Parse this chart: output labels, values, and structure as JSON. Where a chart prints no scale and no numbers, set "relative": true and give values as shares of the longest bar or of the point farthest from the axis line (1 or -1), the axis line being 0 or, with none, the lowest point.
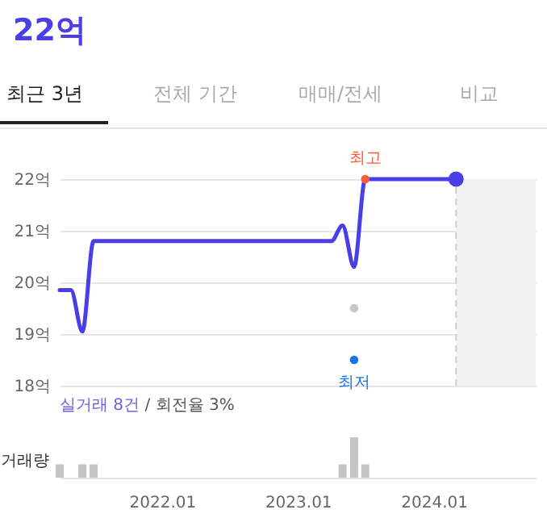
{
  "chart_data": [
    {
      "type": "line",
      "title": "22억",
      "x": [
        "2021-04",
        "2021-05",
        "2021-06",
        "2021-07",
        "2023-04",
        "2023-05",
        "2023-06",
        "2023-07",
        "2024-03"
      ],
      "series": [
        {
          "color": "#4a3ee6",
          "values": [
            19.85,
            19.85,
            19.05,
            20.8,
            20.8,
            21.1,
            20.3,
            22.0,
            22.0
          ]
        },
        {
          "type": "scatter",
          "color": "#c8c8c8",
          "x": [
            "2023-06"
          ],
          "values": [
            19.5
          ]
        },
        {
          "type": "scatter",
          "color": "#1a73e8",
          "x": [
            "2023-06"
          ],
          "values": [
            18.5
          ]
        },
        {
          "type": "scatter",
          "color": "#ff5a36",
          "x": [
            "2023-07"
          ],
          "values": [
            22.0
          ]
        },
        {
          "type": "scatter",
          "color": "#4a3ee6",
          "x": [
            "2024-03"
          ],
          "values": [
            22.0
          ]
        }
      ],
      "xlim": [
        "2021-04",
        "2024-10"
      ],
      "ylim": [
        18,
        22
      ],
      "yticks": [
        {
          "value": 18,
          "label": "18억"
        },
        {
          "value": 19,
          "label": "19억"
        },
        {
          "value": 20,
          "label": "20억"
        },
        {
          "value": 21,
          "label": "21억"
        },
        {
          "value": 22,
          "label": "22억"
        }
      ],
      "tick_labels": "y",
      "grid": "y",
      "bands": [
        {
          "axis": "x",
          "from": "2024-03",
          "to": "2024-10",
          "color": "#f2f2f2"
        }
      ],
      "ref_lines": [
        {
          "axis": "x",
          "value": "2024-03",
          "color": "#cccccc",
          "line_style": "dashed"
        }
      ],
      "annotations": [
        "최근 3년",
        "전체 기간",
        "매매/전세",
        "비교",
        "실거래 8건",
        "/ 회전율 3%",
        {
          "text": "최고",
          "x": "2023-07",
          "y": 22.0
        },
        {
          "text": "최저",
          "x": "2023-06",
          "y": 18.5
        }
      ]
    },
    {
      "type": "bar",
      "ylabel": "거래량",
      "relative": true,
      "color": "#c4c4c4",
      "x": [
        "2021-04",
        "2021-06",
        "2021-07",
        "2023-05",
        "2023-06",
        "2023-07"
      ],
      "values": [
        0.33,
        0.33,
        0.33,
        0.33,
        1,
        0.33
      ],
      "xlim": [
        "2021-04",
        "2024-10"
      ],
      "xticks": [
        {
          "value": "2022-01",
          "label": "2022.01"
        },
        {
          "value": "2023-01",
          "label": "2023.01"
        },
        {
          "value": "2024-01",
          "label": "2024.01"
        }
      ],
      "tick_labels": "x"
    }
  ]
}
